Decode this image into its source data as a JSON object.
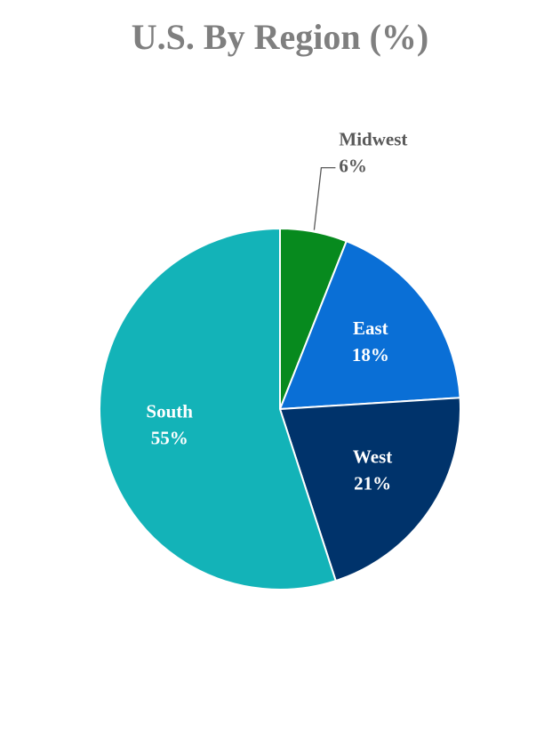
{
  "chart_data": {
    "type": "pie",
    "title": "U.S. By Region (%)",
    "categories": [
      "Midwest",
      "East",
      "West",
      "South"
    ],
    "values": [
      6,
      18,
      21,
      55
    ],
    "value_labels": [
      "6%",
      "18%",
      "21%",
      "55%"
    ],
    "colors": [
      "#078a1e",
      "#0a6fd6",
      "#00336b",
      "#13b3b8"
    ]
  }
}
